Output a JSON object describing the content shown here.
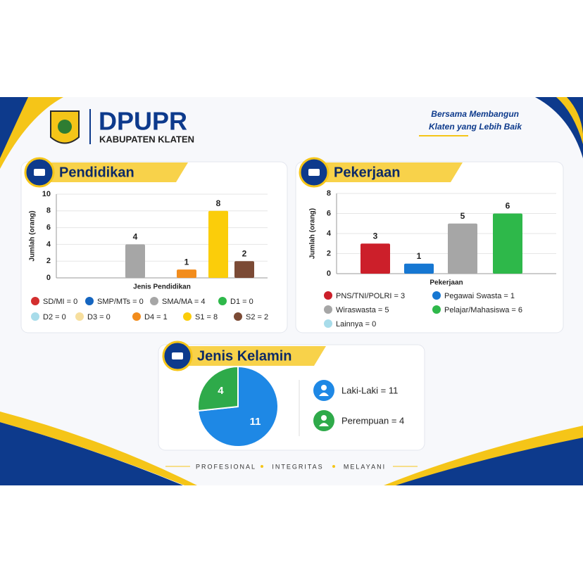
{
  "header": {
    "title": "DPUPR",
    "subtitle": "KABUPATEN KLATEN",
    "tagline": [
      "Bersama Membangun",
      "Klaten yang Lebih Baik"
    ]
  },
  "footer": [
    "PROFESIONAL",
    "INTEGRITAS",
    "MELAYANI"
  ],
  "chart_data": [
    {
      "type": "bar",
      "title": "Pendidikan",
      "y_label": "Jumlah (orang)",
      "x_label": "Jenis Pendidikan",
      "categories": [
        "SD/MI = 0",
        "SMP/MTs = 0",
        "SMA/MA = 4",
        "D1 = 0",
        "D2 = 0",
        "D3 = 0",
        "D4 = 1",
        "S1 = 8",
        "S2 = 2"
      ],
      "values": [
        0,
        0,
        4,
        0,
        0,
        0,
        1,
        8,
        2
      ],
      "colors": [
        "#d32f2f",
        "#1565c0",
        "#a6a6a6",
        "#2eb84a",
        "#a8dcea",
        "#f7df9e",
        "#f28c1c",
        "#fbcd0a",
        "#7b4a35"
      ],
      "ylim": [
        0,
        10
      ],
      "yticks": [
        0,
        2,
        4,
        6,
        8,
        10
      ]
    },
    {
      "type": "bar",
      "title": "Pekerjaan",
      "y_label": "Jumlah (orang)",
      "x_label": "Pekerjaan",
      "categories": [
        "PNS/TNI/POLRI = 3",
        "Pegawai Swasta = 1",
        "Wiraswasta = 5",
        "Pelajar/Mahasiswa = 6",
        "Lainnya = 0"
      ],
      "values": [
        3,
        1,
        5,
        6,
        0
      ],
      "colors": [
        "#cc1f2a",
        "#1677d2",
        "#a6a6a6",
        "#2eb84a",
        "#a8dcea"
      ],
      "ylim": [
        0,
        8
      ],
      "yticks": [
        0,
        2,
        4,
        6,
        8
      ]
    },
    {
      "type": "pie",
      "title": "Jenis Kelamin",
      "categories": [
        "Laki-Laki = 11",
        "Perempuan = 4"
      ],
      "values": [
        11,
        4
      ],
      "colors": [
        "#1e88e5",
        "#2eaa4a"
      ]
    }
  ]
}
